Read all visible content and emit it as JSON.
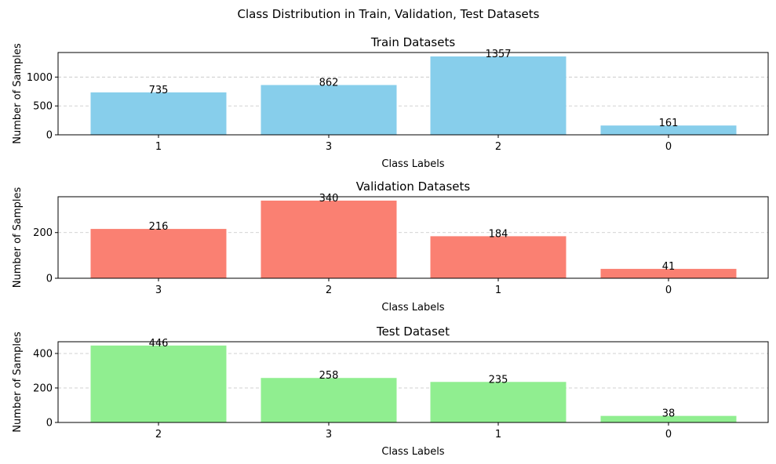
{
  "figure": {
    "suptitle": "Class Distribution in Train, Validation, Test Datasets"
  },
  "chart_data": [
    {
      "type": "bar",
      "title": "Train Datasets",
      "xlabel": "Class Labels",
      "ylabel": "Number of Samples",
      "categories": [
        "1",
        "3",
        "2",
        "0"
      ],
      "values": [
        735,
        862,
        1357,
        161
      ],
      "yticks": [
        0,
        500,
        1000
      ],
      "ylim": [
        0,
        1425
      ],
      "color": "#87ceeb",
      "grid": "y-dashed",
      "data_labels": true
    },
    {
      "type": "bar",
      "title": "Validation Datasets",
      "xlabel": "Class Labels",
      "ylabel": "Number of Samples",
      "categories": [
        "3",
        "2",
        "1",
        "0"
      ],
      "values": [
        216,
        340,
        184,
        41
      ],
      "yticks": [
        0,
        200
      ],
      "ylim": [
        0,
        357
      ],
      "color": "#fa8072",
      "grid": "y-dashed",
      "data_labels": true
    },
    {
      "type": "bar",
      "title": "Test Dataset",
      "xlabel": "Class Labels",
      "ylabel": "Number of Samples",
      "categories": [
        "2",
        "3",
        "1",
        "0"
      ],
      "values": [
        446,
        258,
        235,
        38
      ],
      "yticks": [
        0,
        200,
        400
      ],
      "ylim": [
        0,
        468
      ],
      "color": "#90ee90",
      "grid": "y-dashed",
      "data_labels": true
    }
  ]
}
